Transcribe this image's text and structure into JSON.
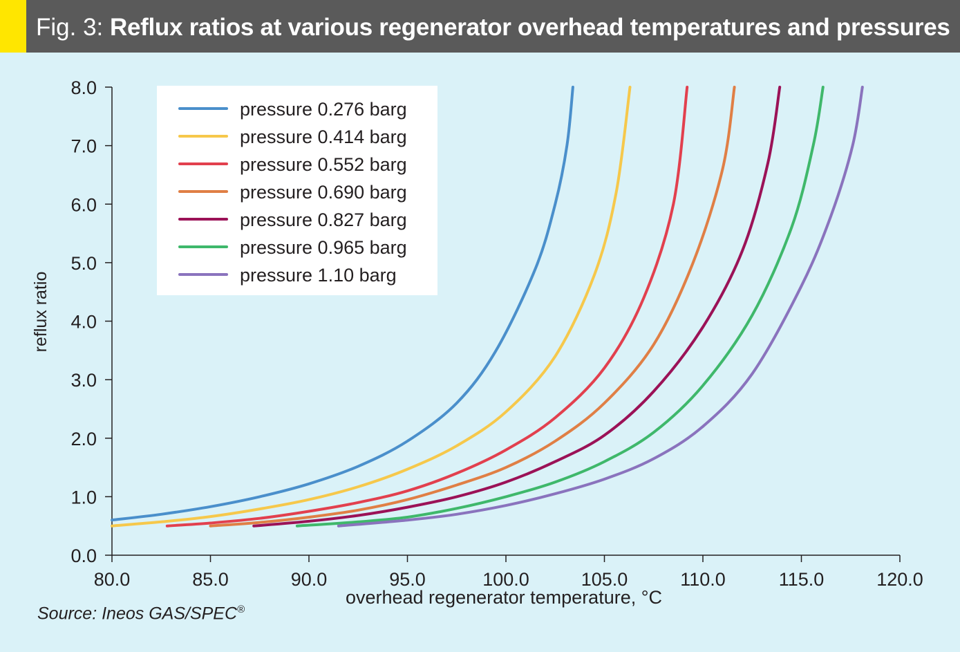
{
  "header": {
    "fig_number": "Fig. 3:",
    "title": "Reflux ratios at various regenerator overhead temperatures and pressures"
  },
  "source": {
    "text": "Source: Ineos GAS/SPEC",
    "mark": "®"
  },
  "colors": {
    "background": "#daf2f8",
    "title_bar": "#5a5a5a",
    "accent": "#ffe600",
    "axis": "#231f20"
  },
  "chart_data": {
    "type": "line",
    "title": "Reflux ratios at various regenerator overhead temperatures and pressures",
    "xlabel": "overhead regenerator temperature, °C",
    "ylabel": "reflux ratio",
    "xlim": [
      80,
      120
    ],
    "ylim": [
      0,
      8
    ],
    "xticks": [
      "80.0",
      "85.0",
      "90.0",
      "95.0",
      "100.0",
      "105.0",
      "110.0",
      "115.0",
      "120.0"
    ],
    "yticks": [
      "0.0",
      "1.0",
      "2.0",
      "3.0",
      "4.0",
      "5.0",
      "6.0",
      "7.0",
      "8.0"
    ],
    "grid": false,
    "legend_position": "top-left",
    "series": [
      {
        "name": "pressure 0.276 barg",
        "color": "#4a8fcb",
        "x": [
          80.0,
          82.5,
          85.0,
          87.5,
          90.0,
          92.5,
          95.0,
          97.5,
          99.5,
          101.5,
          102.5,
          103.1,
          103.4
        ],
        "y": [
          0.6,
          0.7,
          0.83,
          1.0,
          1.22,
          1.52,
          1.95,
          2.6,
          3.5,
          4.9,
          6.0,
          7.0,
          8.0
        ]
      },
      {
        "name": "pressure 0.414 barg",
        "color": "#f6c84b",
        "x": [
          80.0,
          82.5,
          85.0,
          87.5,
          90.0,
          92.5,
          95.0,
          97.5,
          100.0,
          102.5,
          104.5,
          105.6,
          106.3
        ],
        "y": [
          0.5,
          0.57,
          0.66,
          0.79,
          0.95,
          1.17,
          1.47,
          1.87,
          2.45,
          3.4,
          4.8,
          6.2,
          8.0
        ]
      },
      {
        "name": "pressure 0.552 barg",
        "color": "#e2404e",
        "x": [
          82.8,
          85.0,
          87.5,
          90.0,
          92.5,
          95.0,
          97.5,
          100.0,
          102.5,
          105.0,
          107.0,
          108.5,
          109.2
        ],
        "y": [
          0.5,
          0.55,
          0.63,
          0.75,
          0.9,
          1.1,
          1.4,
          1.8,
          2.35,
          3.2,
          4.4,
          6.0,
          8.0
        ]
      },
      {
        "name": "pressure 0.690 barg",
        "color": "#e07f45",
        "x": [
          85.0,
          87.5,
          90.0,
          92.5,
          95.0,
          97.5,
          100.0,
          102.5,
          105.0,
          107.5,
          109.5,
          111.0,
          111.6
        ],
        "y": [
          0.5,
          0.56,
          0.65,
          0.77,
          0.95,
          1.2,
          1.5,
          1.95,
          2.6,
          3.6,
          5.0,
          6.6,
          8.0
        ]
      },
      {
        "name": "pressure 0.827 barg",
        "color": "#9b1257",
        "x": [
          87.2,
          90.0,
          92.5,
          95.0,
          97.5,
          100.0,
          102.5,
          105.0,
          107.5,
          110.0,
          112.0,
          113.3,
          113.9
        ],
        "y": [
          0.5,
          0.58,
          0.68,
          0.82,
          1.0,
          1.25,
          1.6,
          2.05,
          2.8,
          3.9,
          5.2,
          6.7,
          8.0
        ]
      },
      {
        "name": "pressure 0.965 barg",
        "color": "#3fb86b",
        "x": [
          89.4,
          92.5,
          95.0,
          97.5,
          100.0,
          102.5,
          105.0,
          107.5,
          110.0,
          112.5,
          114.5,
          115.6,
          116.1
        ],
        "y": [
          0.5,
          0.57,
          0.65,
          0.8,
          1.0,
          1.25,
          1.6,
          2.1,
          2.9,
          4.1,
          5.6,
          7.0,
          8.0
        ]
      },
      {
        "name": "pressure 1.10 barg",
        "color": "#8a73bd",
        "x": [
          91.5,
          95.0,
          97.5,
          100.0,
          102.5,
          105.0,
          107.5,
          110.0,
          112.5,
          115.0,
          116.5,
          117.6,
          118.1
        ],
        "y": [
          0.5,
          0.6,
          0.7,
          0.85,
          1.05,
          1.3,
          1.65,
          2.2,
          3.1,
          4.6,
          5.8,
          7.0,
          8.0
        ]
      }
    ]
  }
}
